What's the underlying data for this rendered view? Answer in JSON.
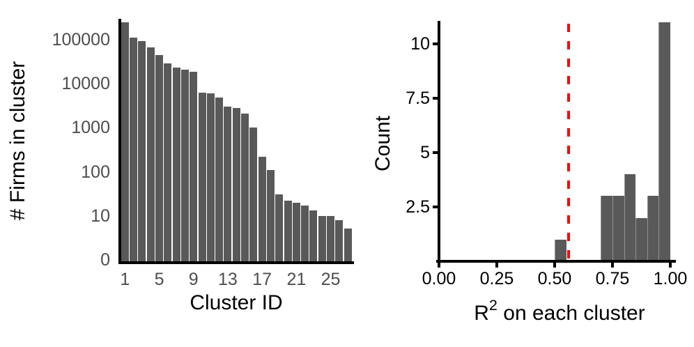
{
  "colors": {
    "bar": "#595959",
    "axis": "#000000",
    "left_tick_text": "#4d4d4d",
    "right_tick_text": "#000000",
    "vline": "#ff0000",
    "background": "#ffffff"
  },
  "chart_data": [
    {
      "type": "bar",
      "xlabel": "Cluster ID",
      "ylabel": "# Firms in cluster",
      "yscale": "pseudo_log10",
      "x": [
        1,
        2,
        3,
        4,
        5,
        6,
        7,
        8,
        9,
        10,
        11,
        12,
        13,
        14,
        15,
        16,
        17,
        18,
        19,
        20,
        21,
        22,
        23,
        24,
        25,
        26,
        27
      ],
      "values": [
        250000,
        110000,
        92000,
        66000,
        45000,
        29000,
        23000,
        21000,
        18500,
        6200,
        6000,
        4800,
        3000,
        2800,
        2100,
        1000,
        220,
        110,
        31,
        22,
        20,
        17,
        13,
        10,
        10,
        8,
        5
      ],
      "yticks": [
        0,
        10,
        100,
        1000,
        10000,
        100000
      ],
      "ytick_labels": [
        "0",
        "10",
        "100",
        "1000",
        "10000",
        "100000"
      ],
      "xticks": [
        1,
        5,
        9,
        13,
        17,
        21,
        25
      ],
      "ylim": [
        0,
        260000
      ],
      "grid": false,
      "legend": "none"
    },
    {
      "type": "histogram",
      "xlabel_base": "R",
      "xlabel_sup": "2",
      "xlabel_rest": " on each cluster",
      "ylabel": "Count",
      "bin_width": 0.05,
      "bins": [
        {
          "x0": 0.5,
          "x1": 0.55,
          "count": 1
        },
        {
          "x0": 0.7,
          "x1": 0.75,
          "count": 3
        },
        {
          "x0": 0.75,
          "x1": 0.8,
          "count": 3
        },
        {
          "x0": 0.8,
          "x1": 0.85,
          "count": 4
        },
        {
          "x0": 0.85,
          "x1": 0.9,
          "count": 2
        },
        {
          "x0": 0.9,
          "x1": 0.95,
          "count": 3
        },
        {
          "x0": 0.95,
          "x1": 1.0,
          "count": 11
        }
      ],
      "vline": {
        "x": 0.56,
        "color": "#ff0000",
        "style": "dashed"
      },
      "xticks": [
        "0.00",
        "0.25",
        "0.50",
        "0.75",
        "1.00"
      ],
      "xtick_values": [
        0,
        0.25,
        0.5,
        0.75,
        1.0
      ],
      "yticks": [
        "2.5",
        "5",
        "7.5",
        "10"
      ],
      "ytick_values": [
        2.5,
        5,
        7.5,
        10
      ],
      "xlim": [
        0,
        1
      ],
      "ylim": [
        0,
        11
      ],
      "grid": false,
      "legend": "none"
    }
  ]
}
